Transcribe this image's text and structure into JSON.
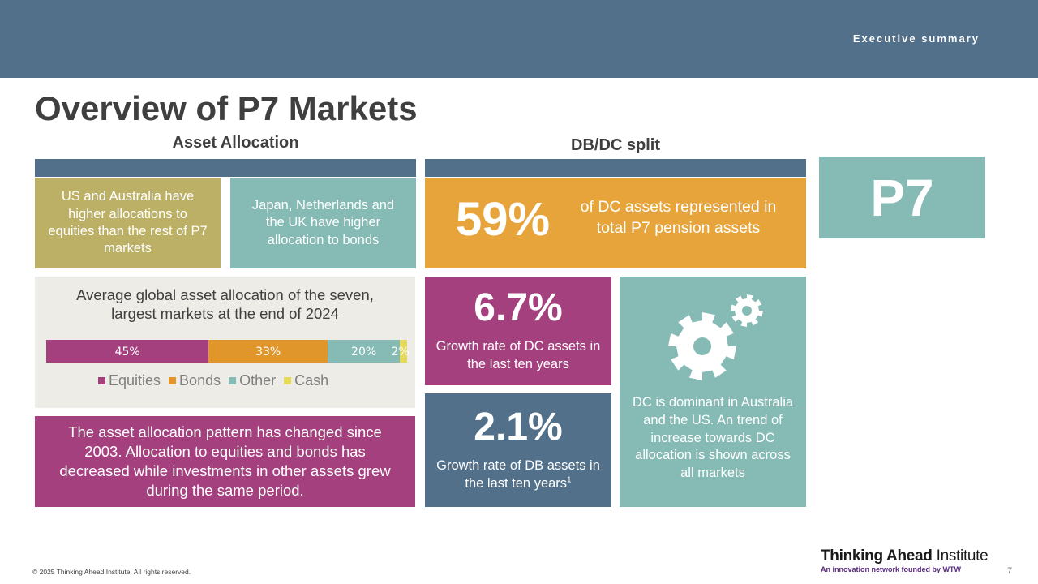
{
  "header": {
    "section": "Executive summary"
  },
  "title": "Overview of P7 Markets",
  "left_column": {
    "heading": "Asset Allocation",
    "box_us_aus": "US and Australia have higher allocations to equities than the rest of P7 markets",
    "box_jp_nl_uk": "Japan, Netherlands and the UK have higher allocation to bonds",
    "pattern_text": "The asset allocation pattern has changed since 2003. Allocation to equities and bonds has decreased while investments in other assets grew during the same period."
  },
  "right_column": {
    "heading": "DB/DC split",
    "dc_share_value": "59%",
    "dc_share_text": "of DC assets represented in total P7 pension assets",
    "dc_growth_value": "6.7%",
    "dc_growth_text": "Growth rate of DC assets in the last ten years",
    "db_growth_value": "2.1%",
    "db_growth_text": "Growth rate of DB assets in the last ten years",
    "db_growth_sup": "1",
    "dc_dominant_text": "DC is dominant in Australia and the US. An trend of increase towards DC allocation is shown across all markets",
    "gear_icon": "gears-icon"
  },
  "p7_badge": "P7",
  "chart_data": {
    "type": "bar",
    "orientation": "horizontal-stacked",
    "title": "Average global asset allocation of the seven, largest markets at the end of 2024",
    "title_lines": [
      "Average global asset allocation of the seven,",
      "largest markets at the end of 2024"
    ],
    "series": [
      {
        "name": "Equities",
        "value": 45,
        "label": "45%",
        "color": "#a3407d"
      },
      {
        "name": "Bonds",
        "value": 33,
        "label": "33%",
        "color": "#e1962b"
      },
      {
        "name": "Other",
        "value": 20,
        "label": "20%",
        "color": "#86bab4"
      },
      {
        "name": "Cash",
        "value": 2,
        "label": "2%",
        "color": "#e4d95a"
      }
    ],
    "legend_position": "bottom",
    "grid": false
  },
  "colors": {
    "header": "#527089",
    "olive": "#bbb065",
    "teal": "#86bab4",
    "orange": "#e7a43b",
    "magenta": "#a3407d",
    "slate": "#527089",
    "panel": "#eeece6"
  },
  "footer": {
    "copyright": "© 2025 Thinking Ahead Institute. All rights reserved.",
    "brand_bold": "Thinking Ahead",
    "brand_regular": "Institute",
    "brand_sub": "An innovation network founded by WTW",
    "page": "7"
  }
}
